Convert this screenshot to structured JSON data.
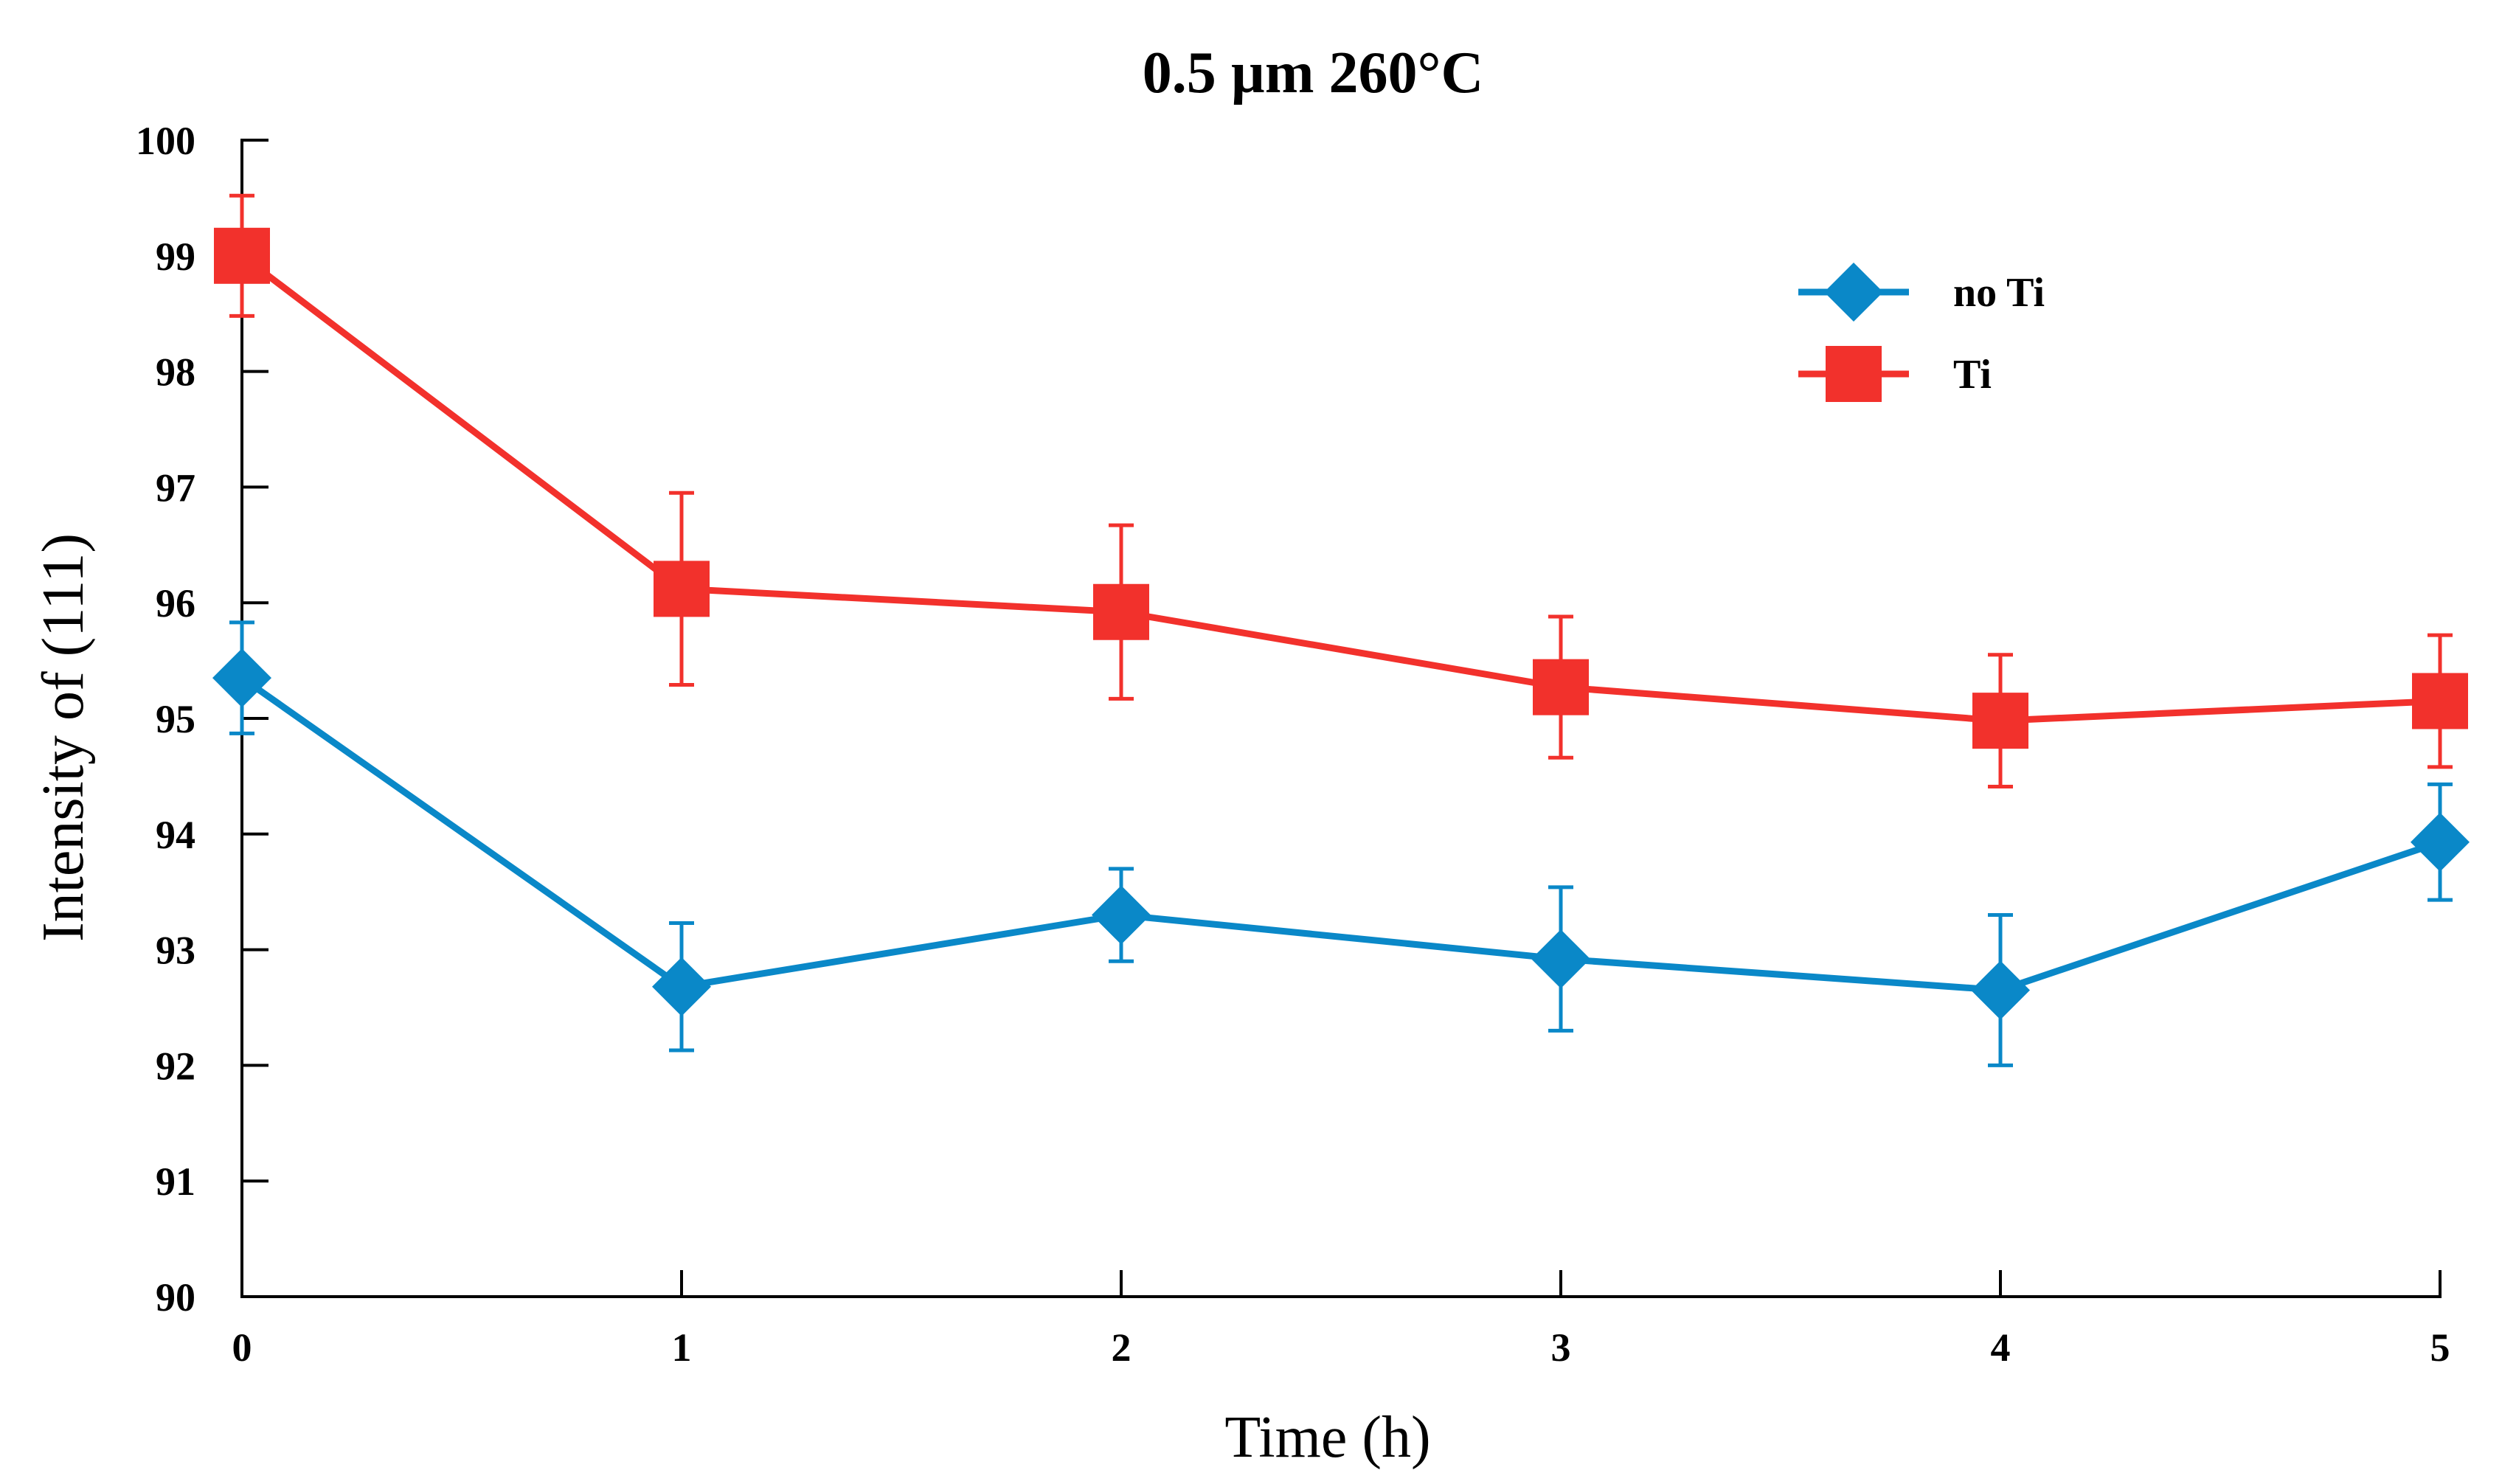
{
  "chart_data": {
    "type": "line",
    "title": "0.5 µm 260°C",
    "xlabel": "Time (h)",
    "ylabel": "Intensity of (111)",
    "x": [
      0,
      1,
      2,
      3,
      4,
      5
    ],
    "xlim": [
      0,
      5
    ],
    "ylim": [
      90,
      100
    ],
    "xticks": [
      "0",
      "1",
      "2",
      "3",
      "4",
      "5"
    ],
    "yticks": [
      "90",
      "91",
      "92",
      "93",
      "94",
      "95",
      "96",
      "97",
      "98",
      "99",
      "100"
    ],
    "grid": false,
    "legend_position": "top-right",
    "series": [
      {
        "name": "no Ti",
        "marker": "diamond",
        "color": "#0a88c8",
        "values": [
          95.35,
          92.68,
          93.3,
          92.92,
          92.65,
          93.93
        ],
        "err_low": [
          0.48,
          0.55,
          0.4,
          0.62,
          0.65,
          0.5
        ],
        "err_high": [
          0.48,
          0.55,
          0.4,
          0.62,
          0.65,
          0.5
        ]
      },
      {
        "name": "Ti",
        "marker": "square",
        "color": "#f2312c",
        "values": [
          99.0,
          96.12,
          95.92,
          95.27,
          94.98,
          95.15
        ],
        "err_low": [
          0.52,
          0.83,
          0.75,
          0.61,
          0.57,
          0.57
        ],
        "err_high": [
          0.52,
          0.83,
          0.75,
          0.61,
          0.57,
          0.57
        ]
      }
    ]
  }
}
